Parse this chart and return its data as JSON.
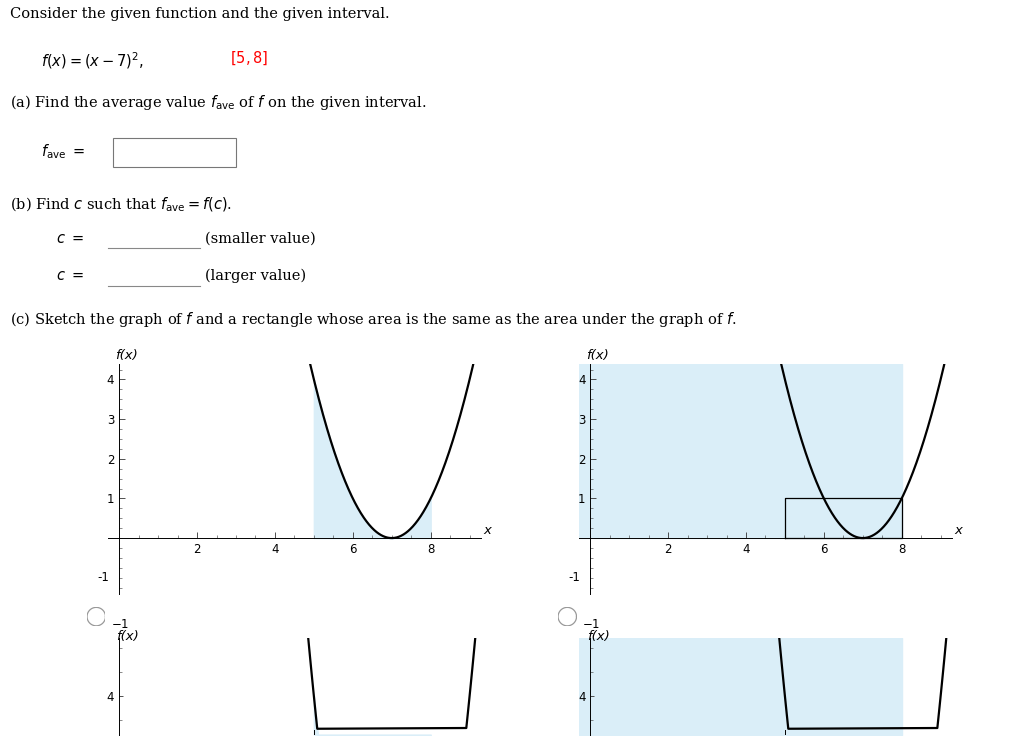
{
  "title_text": "Consider the given function and the given interval.",
  "ylabel": "f(x)",
  "xlabel": "x",
  "xlim": [
    -0.3,
    9.3
  ],
  "ylim": [
    -1.4,
    4.4
  ],
  "xticks": [
    2,
    4,
    6,
    8
  ],
  "yticks": [
    1,
    2,
    3,
    4
  ],
  "ytick_neg": -1,
  "interval_a": 5,
  "interval_b": 8,
  "vertex": 7,
  "shade_color": "#daeef8",
  "curve_color": "#000000",
  "axis_color": "#000000",
  "background_color": "#ffffff",
  "f_ave": 1.0,
  "fs_main": 10.5,
  "fs_axis": 8.5,
  "x_minor_step": 0.5,
  "y_minor_step": 0.25
}
